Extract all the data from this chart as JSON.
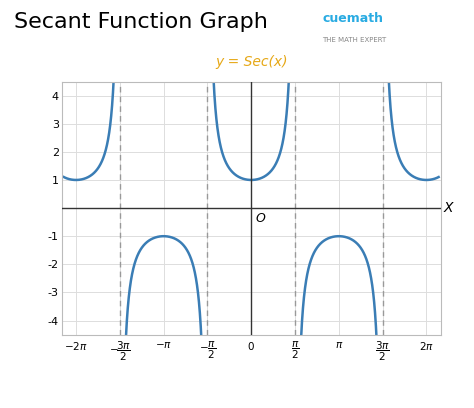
{
  "title": "Secant Function Graph",
  "formula_label": "y = Sec(x)",
  "formula_color": "#E6A817",
  "curve_color": "#3A7DB5",
  "asymptote_color": "#999999",
  "background_color": "#ffffff",
  "xlim": [
    -6.8,
    6.8
  ],
  "ylim": [
    -4.5,
    4.5
  ],
  "yticks": [
    -4,
    -3,
    -2,
    -1,
    1,
    2,
    3,
    4
  ],
  "xtick_values": [
    -6.283185307,
    -4.71238898,
    -3.14159265,
    -1.5707963,
    0,
    1.5707963,
    3.14159265,
    4.71238898,
    6.283185307
  ],
  "asymptotes": [
    -4.71238898,
    -1.5707963,
    1.5707963,
    4.71238898
  ],
  "xlabel": "X",
  "grid_color": "#dddddd",
  "title_fontsize": 16,
  "label_fontsize": 9
}
